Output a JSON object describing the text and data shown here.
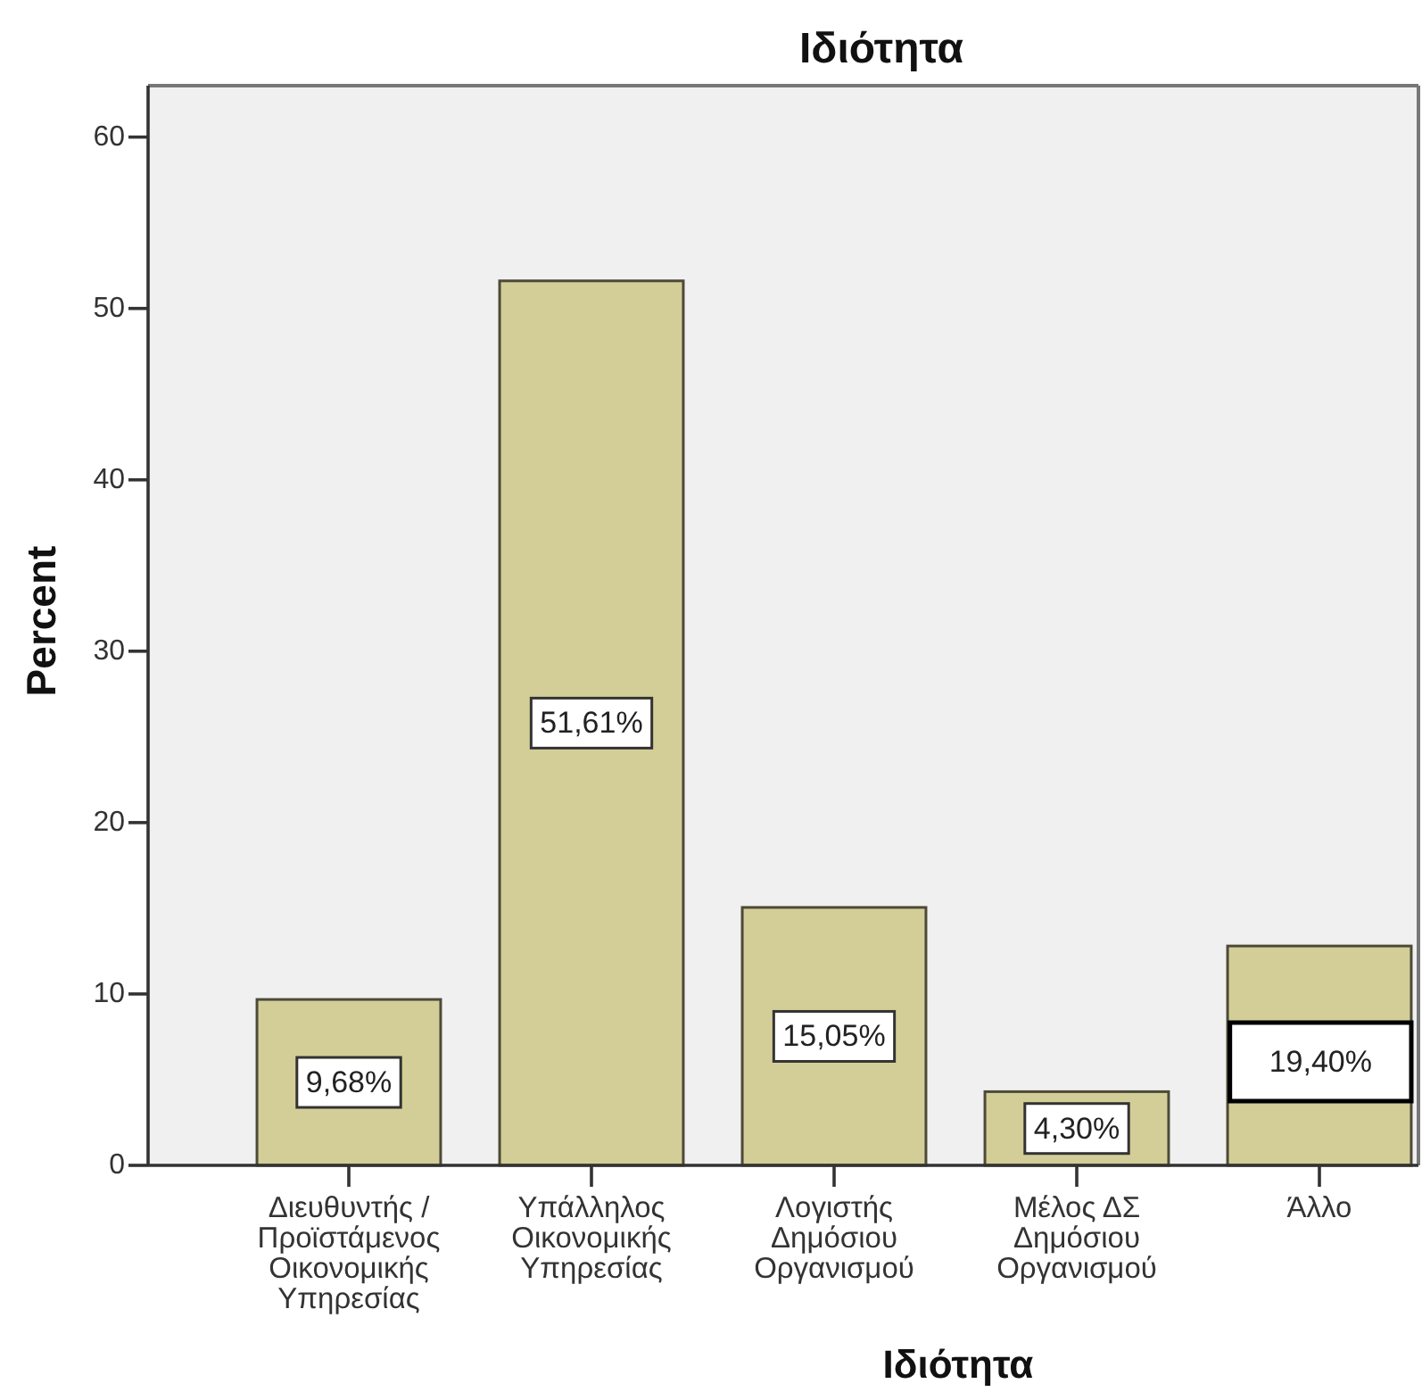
{
  "chart_data": {
    "type": "bar",
    "title": "Ιδιότητα",
    "xlabel": "Ιδιότητα",
    "ylabel": "Percent",
    "categories": [
      "Διευθυντής / Προϊστάμενος Οικονομικής Υπηρεσίας",
      "Υπάλληλος Οικονομικής Υπηρεσίας",
      "Λογιστής Δημόσιου Οργανισμού",
      "Μέλος ΔΣ Δημόσιου Οργανισμού",
      "Άλλο"
    ],
    "values": [
      9.68,
      51.61,
      15.05,
      4.3,
      12.8
    ],
    "value_labels": [
      "9,68%",
      "51,61%",
      "15,05%",
      "4,30%",
      null
    ],
    "annotations": [
      "19,40%"
    ],
    "color": "#d3ce98",
    "ylim": [
      0,
      63
    ],
    "yticks": [
      0,
      10,
      20,
      30,
      40,
      50,
      60
    ]
  }
}
